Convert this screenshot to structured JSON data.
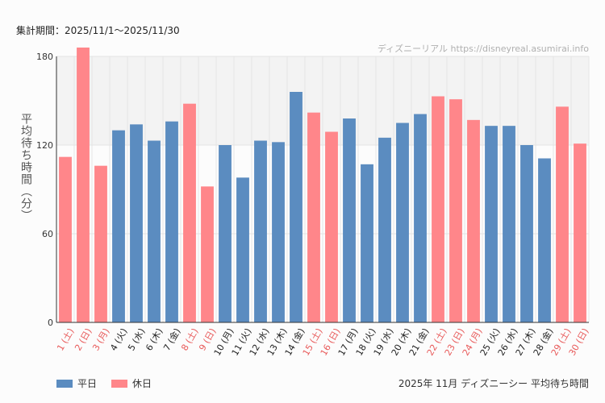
{
  "header": {
    "period": "集計期間：2025/11/1〜2025/11/30",
    "watermark": "ディズニーリアル https://disneyreal.asumirai.info"
  },
  "legend": {
    "weekday": "平日",
    "holiday": "休日"
  },
  "colors": {
    "weekday": "#5b8cc0",
    "holiday": "#ff868a",
    "weekday_label": "#222222",
    "holiday_label": "#e85a5a"
  },
  "chart_data": {
    "type": "bar",
    "title": "2025年 11月 ディズニーシー 平均待ち時間",
    "ylabel": "平均待ち時間（分）",
    "xlabel": "",
    "ylim": [
      0,
      180
    ],
    "yticks": [
      0,
      60,
      120,
      180
    ],
    "categories": [
      "1 (土)",
      "2 (日)",
      "3 (月)",
      "4 (火)",
      "5 (水)",
      "6 (木)",
      "7 (金)",
      "8 (土)",
      "9 (日)",
      "10 (月)",
      "11 (火)",
      "12 (水)",
      "13 (木)",
      "14 (金)",
      "15 (土)",
      "16 (日)",
      "17 (月)",
      "18 (火)",
      "19 (水)",
      "20 (木)",
      "21 (金)",
      "22 (土)",
      "23 (日)",
      "24 (月)",
      "25 (火)",
      "26 (水)",
      "27 (木)",
      "28 (金)",
      "29 (土)",
      "30 (日)"
    ],
    "values": [
      112,
      186,
      106,
      130,
      134,
      123,
      136,
      148,
      92,
      120,
      98,
      123,
      122,
      156,
      142,
      129,
      138,
      107,
      125,
      135,
      141,
      153,
      151,
      137,
      133,
      133,
      120,
      111,
      146,
      121
    ],
    "day_type": [
      "holiday",
      "holiday",
      "holiday",
      "weekday",
      "weekday",
      "weekday",
      "weekday",
      "holiday",
      "holiday",
      "weekday",
      "weekday",
      "weekday",
      "weekday",
      "weekday",
      "holiday",
      "holiday",
      "weekday",
      "weekday",
      "weekday",
      "weekday",
      "weekday",
      "holiday",
      "holiday",
      "holiday",
      "weekday",
      "weekday",
      "weekday",
      "weekday",
      "holiday",
      "holiday"
    ],
    "series": [
      {
        "name": "平日"
      },
      {
        "name": "休日"
      }
    ]
  }
}
